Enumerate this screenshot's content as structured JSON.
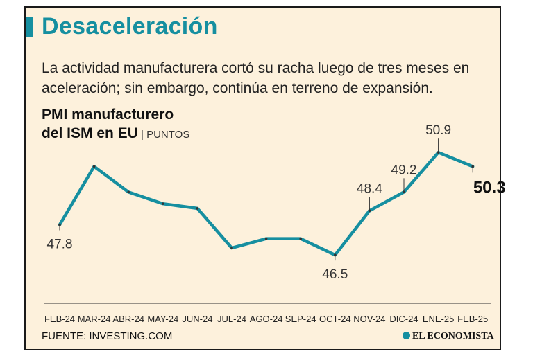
{
  "header": {
    "title": "Desaceleración",
    "subtitle": "La actividad manufacturera cortó su racha luego de tres meses en aceleración; sin embargo, continúa en terreno de expansión."
  },
  "chart_data": {
    "type": "line",
    "title_line1": "PMI manufacturero",
    "title_line2": "del ISM en EU",
    "unit_separator": " | ",
    "unit": "PUNTOS",
    "categories": [
      "FEB-24",
      "MAR-24",
      "ABR-24",
      "MAY-24",
      "JUN-24",
      "JUL-24",
      "AGO-24",
      "SEP-24",
      "OCT-24",
      "NOV-24",
      "DIC-24",
      "ENE-25",
      "FEB-25"
    ],
    "series": [
      {
        "name": "PMI",
        "values": [
          47.8,
          50.3,
          49.2,
          48.7,
          48.5,
          46.8,
          47.2,
          47.2,
          46.5,
          48.4,
          49.2,
          50.9,
          50.3
        ]
      }
    ],
    "labels": [
      {
        "index": 0,
        "text": "47.8"
      },
      {
        "index": 8,
        "text": "46.5"
      },
      {
        "index": 9,
        "text": "48.4"
      },
      {
        "index": 10,
        "text": "49.2"
      },
      {
        "index": 11,
        "text": "50.9"
      },
      {
        "index": 12,
        "text": "50.3"
      }
    ],
    "ylim": [
      46,
      51.5
    ],
    "color": "#168fa0"
  },
  "footer": {
    "source": "FUENTE: INVESTING.COM",
    "logo": "EL ECONOMISTA"
  }
}
